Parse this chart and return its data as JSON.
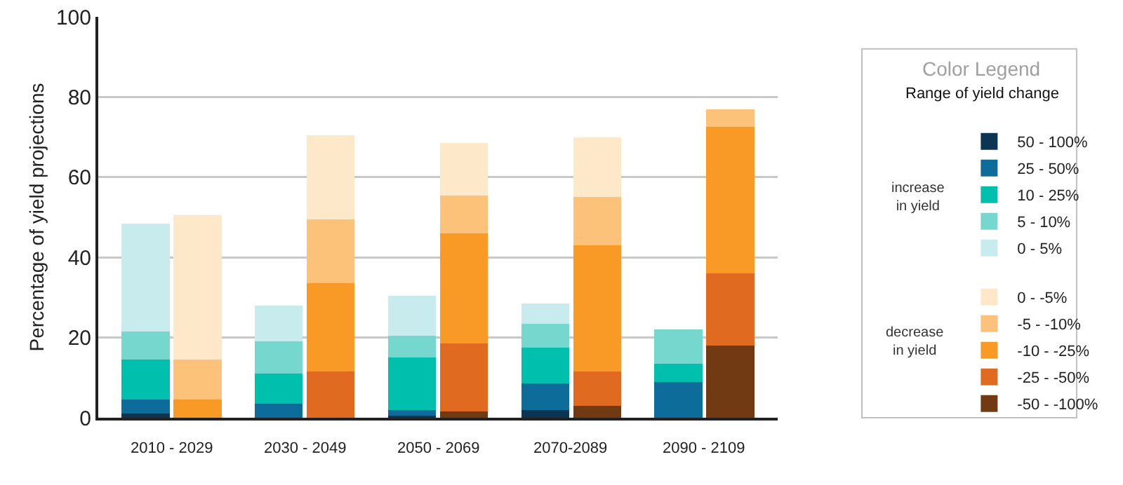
{
  "chart_data": {
    "type": "bar",
    "stacked": true,
    "ylabel": "Percentage of yield projections",
    "legend_title": "Color Legend",
    "annotations": [
      "Range of yield change",
      "increase in yield",
      "decrease in yield",
      "2010 - 2029",
      "2030 - 2049",
      "2050 - 2069",
      "2070-2089",
      "2090 - 2109"
    ],
    "categories": [
      null,
      null,
      null,
      null,
      null,
      null,
      null,
      null,
      null,
      null
    ],
    "ylim": [
      0,
      100
    ],
    "yticks": [
      0,
      20,
      40,
      60,
      80,
      100
    ],
    "grid": "y",
    "legend": "right",
    "series": [
      {
        "name": "50 - 100%",
        "color": "#0b3553",
        "values": [
          1,
          null,
          0,
          null,
          0.5,
          null,
          2,
          null,
          0,
          null
        ]
      },
      {
        "name": "25 - 50%",
        "color": "#0e6c9a",
        "values": [
          3.5,
          null,
          3.5,
          null,
          1.5,
          null,
          6.5,
          null,
          9,
          null
        ]
      },
      {
        "name": "10 - 25%",
        "color": "#00bfad",
        "values": [
          10,
          null,
          7.5,
          null,
          13,
          null,
          9,
          null,
          4.5,
          null
        ]
      },
      {
        "name": "5 - 10%",
        "color": "#76d7cf",
        "values": [
          7,
          null,
          8,
          null,
          5.5,
          null,
          6,
          null,
          8.5,
          null
        ]
      },
      {
        "name": "0 - 5%",
        "color": "#c8ebee",
        "values": [
          27,
          null,
          9,
          null,
          10,
          null,
          5,
          null,
          0,
          null
        ]
      },
      {
        "name": "-50 - -100%",
        "color": "#723a12",
        "values": [
          null,
          0,
          null,
          0,
          null,
          1.5,
          null,
          3,
          null,
          18
        ]
      },
      {
        "name": "-25 - -50%",
        "color": "#e06a1f",
        "values": [
          null,
          0,
          null,
          11.5,
          null,
          17,
          null,
          8.5,
          null,
          18
        ]
      },
      {
        "name": "-10 - -25%",
        "color": "#f99a26",
        "values": [
          null,
          4.5,
          null,
          22,
          null,
          27.5,
          null,
          31.5,
          null,
          36.5
        ]
      },
      {
        "name": "-5 - -10%",
        "color": "#fcc27a",
        "values": [
          null,
          10,
          null,
          16,
          null,
          9.5,
          null,
          12,
          null,
          4.5
        ]
      },
      {
        "name": "0 - -5%",
        "color": "#fde8c9",
        "values": [
          null,
          36,
          null,
          21,
          null,
          13,
          null,
          15,
          null,
          0
        ]
      }
    ]
  }
}
